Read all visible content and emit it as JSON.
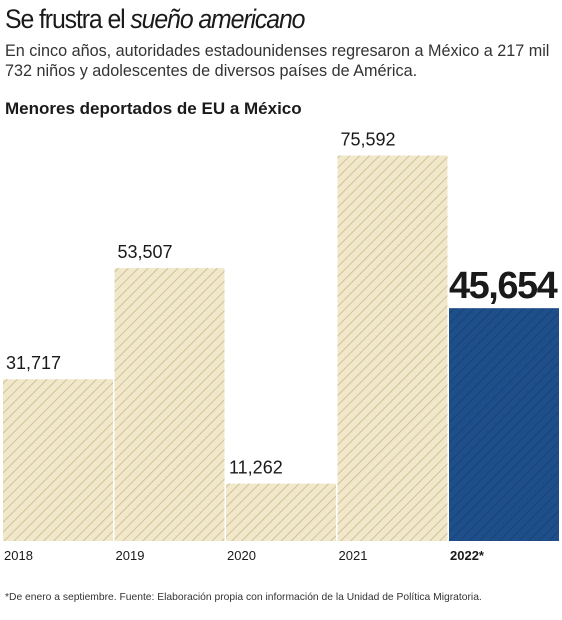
{
  "header": {
    "title_plain": "Se frustra el ",
    "title_italic": "sueño americano",
    "subtitle": "En cinco años, autoridades estadounidenses regresaron a México a 217 mil 732 niños y adolescentes de diversos países de América."
  },
  "footnote": "*De enero a septiembre. Fuente: Elaboración propia con información de la Unidad de Política Migratoria.",
  "colors": {
    "bar_fill": "#f1e8cb",
    "bar_hatch": "#c8b98a",
    "highlight_fill": "#1f4f8a",
    "highlight_hatch": "#16406f",
    "text": "#222222"
  },
  "chart_data": {
    "type": "bar",
    "title": "Menores deportados de EU a México",
    "categories": [
      "2018",
      "2019",
      "2020",
      "2021",
      "2022*"
    ],
    "values": [
      31717,
      53507,
      11262,
      75592,
      45654
    ],
    "value_labels": [
      "31,717",
      "53,507",
      "11,262",
      "75,592",
      "45,654"
    ],
    "highlight_index": 4,
    "ylim": [
      0,
      80000
    ],
    "grid": false,
    "legend": "none"
  }
}
